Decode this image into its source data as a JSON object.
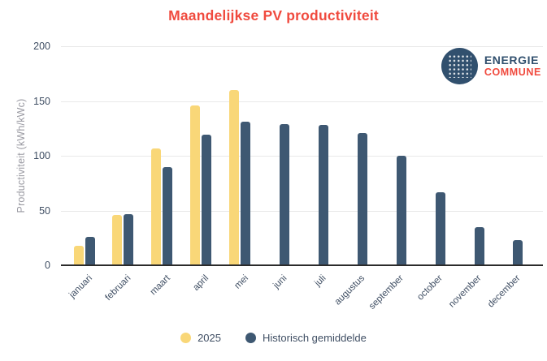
{
  "header": {
    "title": "Maandelijkse PV productiviteit",
    "title_color": "#f04a3e"
  },
  "logo": {
    "line1": "ENERGIE",
    "line2": "COMMUNE",
    "circle_color": "#31506e",
    "line1_color": "#31506e",
    "line2_color": "#f04a3e"
  },
  "chart_data": {
    "type": "bar",
    "title": "Maandelijkse PV productiviteit",
    "categories": [
      "januari",
      "februari",
      "maart",
      "april",
      "mei",
      "juni",
      "juli",
      "augustus",
      "september",
      "october",
      "november",
      "december"
    ],
    "series": [
      {
        "name": "2025",
        "color": "#f9d778",
        "values": [
          18,
          46,
          107,
          146,
          160,
          null,
          null,
          null,
          null,
          null,
          null,
          null
        ]
      },
      {
        "name": "Historisch gemiddelde",
        "color": "#3e5872",
        "values": [
          26,
          47,
          90,
          119,
          131,
          129,
          128,
          121,
          100,
          67,
          35,
          23
        ]
      }
    ],
    "xlabel": "",
    "ylabel": "Productiviteit (kWh/kWc)",
    "ylim": [
      0,
      200
    ],
    "yticks": [
      0,
      50,
      100,
      150,
      200
    ],
    "grid": true,
    "gridline_color": "#e8e8e8",
    "axis_line_color": "#2b2b2b",
    "tick_label_color": "#3f4e63",
    "axis_title_color": "#9a9aa2",
    "legend_position": "bottom"
  }
}
